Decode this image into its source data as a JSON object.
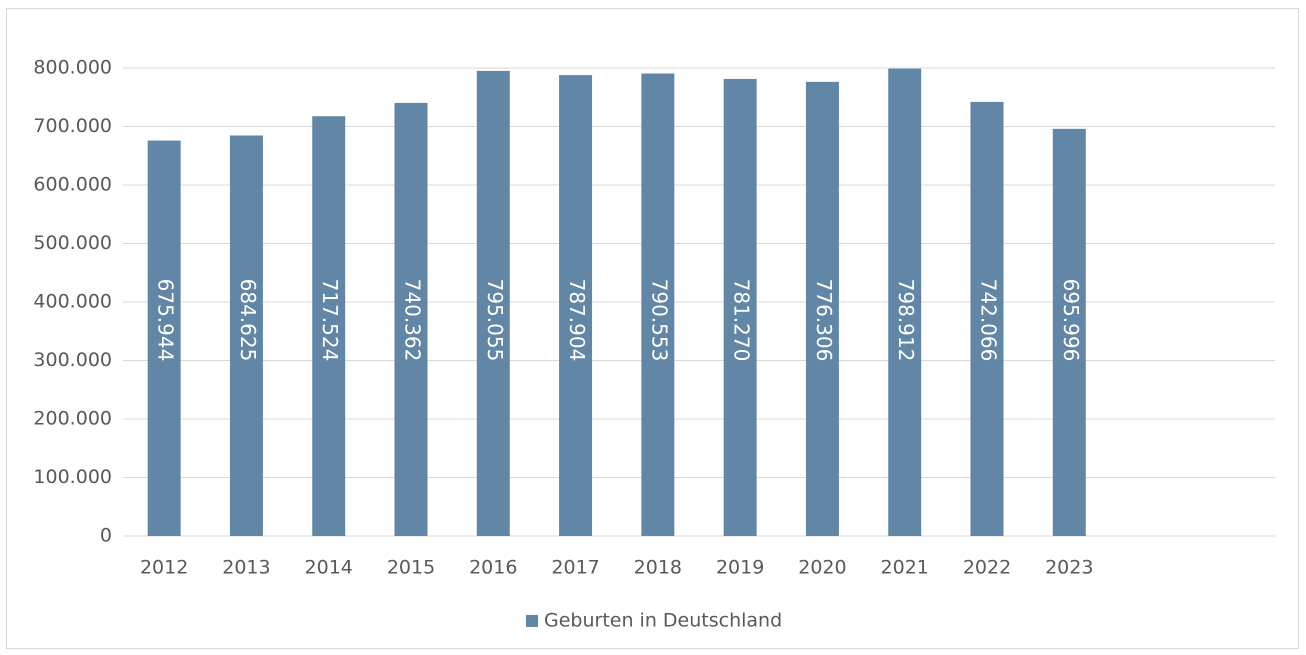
{
  "chart_data": {
    "type": "bar",
    "categories": [
      "2012",
      "2013",
      "2014",
      "2015",
      "2016",
      "2017",
      "2018",
      "2019",
      "2020",
      "2021",
      "2022",
      "2023",
      null,
      null
    ],
    "series": [
      {
        "name": "Geburten in Deutschland",
        "color": "#6286a6",
        "values": [
          675944,
          684625,
          717524,
          740362,
          795055,
          787904,
          790553,
          781270,
          776306,
          798912,
          742066,
          695996,
          null,
          null
        ],
        "value_labels": [
          "675.944",
          "684.625",
          "717.524",
          "740.362",
          "795.055",
          "787.904",
          "790.553",
          "781.270",
          "776.306",
          "798.912",
          "742.066",
          "695.996",
          null,
          null
        ]
      }
    ],
    "ylim": [
      0,
      800000
    ],
    "yticks": [
      0,
      {
        "value": 100000,
        "label": "100.000"
      },
      {
        "value": 200000,
        "label": "200.000"
      },
      {
        "value": 300000,
        "label": "300.000"
      },
      {
        "value": 400000,
        "label": "400.000"
      },
      {
        "value": 500000,
        "label": "500.000"
      },
      {
        "value": 600000,
        "label": "600.000"
      },
      {
        "value": 700000,
        "label": "700.000"
      },
      {
        "value": 800000,
        "label": "800.000"
      }
    ],
    "grid": true,
    "legend": "bottom"
  }
}
